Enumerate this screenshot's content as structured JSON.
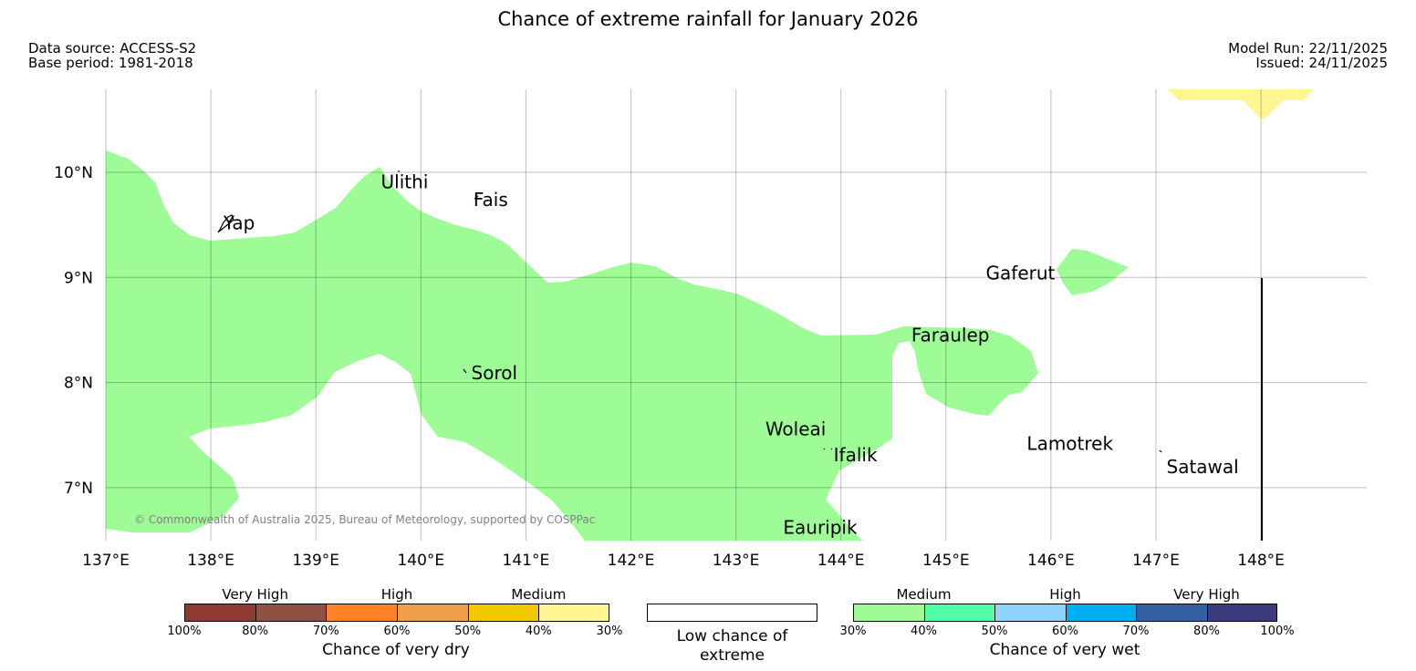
{
  "title": "Chance of extreme rainfall for January 2026",
  "data_source": "Data source: ACCESS-S2",
  "base_period": "Base period: 1981-2018",
  "model_run": "Model Run: 22/11/2025",
  "issued": "Issued: 24/11/2025",
  "copyright": "© Commonwealth of Australia 2025, Bureau of Meteorology, supported by COSPPac",
  "map": {
    "lon_labels": [
      "137°E",
      "138°E",
      "139°E",
      "140°E",
      "141°E",
      "142°E",
      "143°E",
      "144°E",
      "145°E",
      "146°E",
      "147°E",
      "148°E"
    ],
    "lat_labels": [
      "10°N",
      "9°N",
      "8°N",
      "7°N"
    ],
    "lon_range": [
      137,
      148.99
    ],
    "lat_range": [
      6.5,
      10.8
    ],
    "places": [
      {
        "name": "Yap",
        "lon": 138.12,
        "lat": 9.52
      },
      {
        "name": "Ulithi",
        "lon": 139.62,
        "lat": 9.91
      },
      {
        "name": "Fais",
        "lon": 140.5,
        "lat": 9.74
      },
      {
        "name": "Gaferut",
        "lon": 145.38,
        "lat": 9.04
      },
      {
        "name": "Faraulep",
        "lon": 144.67,
        "lat": 8.45
      },
      {
        "name": "Sorol",
        "lon": 140.48,
        "lat": 8.09
      },
      {
        "name": "Woleai",
        "lon": 143.28,
        "lat": 7.56
      },
      {
        "name": "Ifalik",
        "lon": 143.93,
        "lat": 7.31
      },
      {
        "name": "Lamotrek",
        "lon": 145.77,
        "lat": 7.42
      },
      {
        "name": "Satawal",
        "lon": 147.1,
        "lat": 7.2
      },
      {
        "name": "Eauripik",
        "lon": 143.45,
        "lat": 6.62
      }
    ],
    "fill_colors": {
      "wet_medium": "#9dfc96",
      "dry_medium": "#fff591"
    }
  },
  "legend": {
    "dry": {
      "title": "Chance of very dry",
      "categories": [
        "Very High",
        "High",
        "Medium"
      ],
      "ticks": [
        "100%",
        "80%",
        "70%",
        "60%",
        "50%",
        "40%",
        "30%"
      ],
      "colors": [
        "#8e3a31",
        "#8f5242",
        "#ff8226",
        "#f0a04b",
        "#f2c800",
        "#fff591"
      ]
    },
    "low": {
      "label": "Low chance of extreme"
    },
    "wet": {
      "title": "Chance of very wet",
      "categories": [
        "Medium",
        "High",
        "Very High"
      ],
      "ticks": [
        "30%",
        "40%",
        "50%",
        "60%",
        "70%",
        "80%",
        "100%"
      ],
      "colors": [
        "#9dfc96",
        "#50fda6",
        "#8fd2fc",
        "#00b0f0",
        "#3561a2",
        "#3b3a7c"
      ]
    }
  }
}
